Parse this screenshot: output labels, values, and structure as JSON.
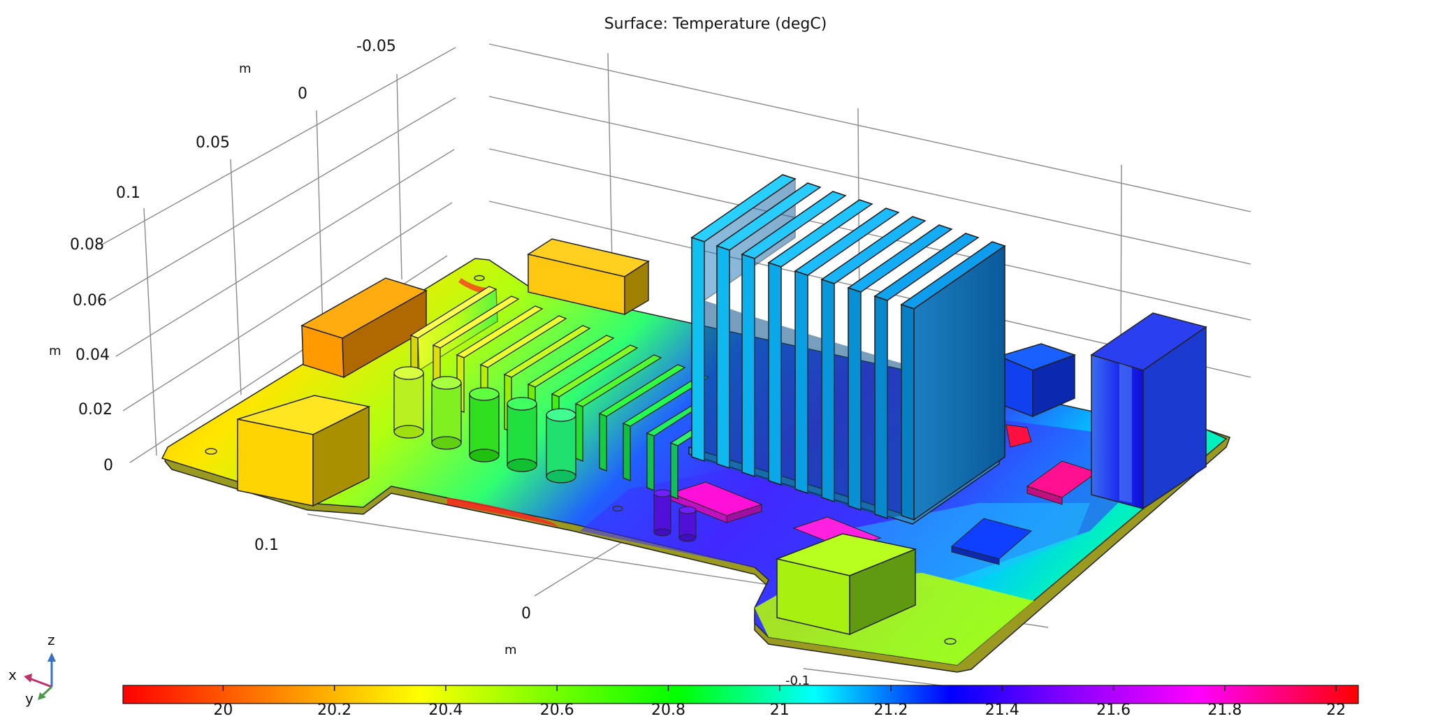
{
  "title": "Surface: Temperature (degC)",
  "axes": {
    "y_ticks": [
      "-0.05",
      "0",
      "0.05",
      "0.1"
    ],
    "y_unit": "m",
    "z_ticks": [
      "0.1",
      "0.08",
      "0.06",
      "0.04",
      "0.02",
      "0"
    ],
    "z_unit": "m",
    "x_ticks": [
      "0.1",
      "0",
      "-0.1"
    ],
    "x_unit": "m"
  },
  "colorbar": {
    "min": 19.82,
    "max": 22.04,
    "ticks": [
      "20",
      "20.2",
      "20.4",
      "20.6",
      "20.8",
      "21",
      "21.2",
      "21.4",
      "21.6",
      "21.8",
      "22"
    ],
    "colors": [
      "#ff0000",
      "#ff8000",
      "#ffff00",
      "#80ff00",
      "#00ff00",
      "#00ffff",
      "#0000ff",
      "#8000ff",
      "#ff00ff",
      "#ff0000"
    ]
  },
  "triad": {
    "x": "x",
    "y": "y",
    "z": "z"
  }
}
